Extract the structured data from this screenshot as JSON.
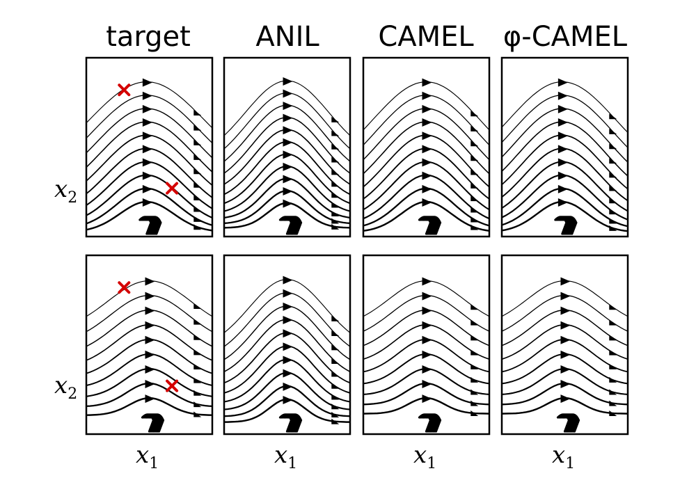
{
  "chart_data": {
    "type": "streamplot",
    "columns": [
      "target",
      "ANIL",
      "CAMEL",
      "φ-CAMEL"
    ],
    "xlabel": "x",
    "xlabel_sub": "1",
    "ylabel": "x",
    "ylabel_sub": "2",
    "rows": 2,
    "grid": false,
    "marker_color": "#d40000",
    "line_color": "#000000",
    "panels": [
      {
        "row": 0,
        "col": 0,
        "method": "target",
        "peak_x": 0.48,
        "width": 0.75,
        "spread": 1.0,
        "lines": 10,
        "markers": [
          [
            0.3,
            0.82
          ],
          [
            0.68,
            0.27
          ]
        ]
      },
      {
        "row": 0,
        "col": 1,
        "method": "ANIL",
        "peak_x": 0.5,
        "width": 0.55,
        "spread": 0.85,
        "lines": 11,
        "markers": []
      },
      {
        "row": 0,
        "col": 2,
        "method": "CAMEL",
        "peak_x": 0.5,
        "width": 0.7,
        "spread": 1.0,
        "lines": 10,
        "markers": []
      },
      {
        "row": 0,
        "col": 3,
        "method": "φ-CAMEL",
        "peak_x": 0.48,
        "width": 0.7,
        "spread": 1.0,
        "lines": 10,
        "markers": []
      },
      {
        "row": 1,
        "col": 0,
        "method": "target",
        "peak_x": 0.5,
        "width": 0.55,
        "spread": 0.55,
        "lines": 9,
        "markers": [
          [
            0.3,
            0.82
          ],
          [
            0.68,
            0.27
          ]
        ]
      },
      {
        "row": 1,
        "col": 1,
        "method": "ANIL",
        "peak_x": 0.5,
        "width": 0.5,
        "spread": 0.75,
        "lines": 10,
        "markers": []
      },
      {
        "row": 1,
        "col": 2,
        "method": "CAMEL",
        "peak_x": 0.5,
        "width": 0.5,
        "spread": 0.5,
        "lines": 9,
        "markers": []
      },
      {
        "row": 1,
        "col": 3,
        "method": "φ-CAMEL",
        "peak_x": 0.5,
        "width": 0.5,
        "spread": 0.5,
        "lines": 9,
        "markers": []
      }
    ]
  }
}
